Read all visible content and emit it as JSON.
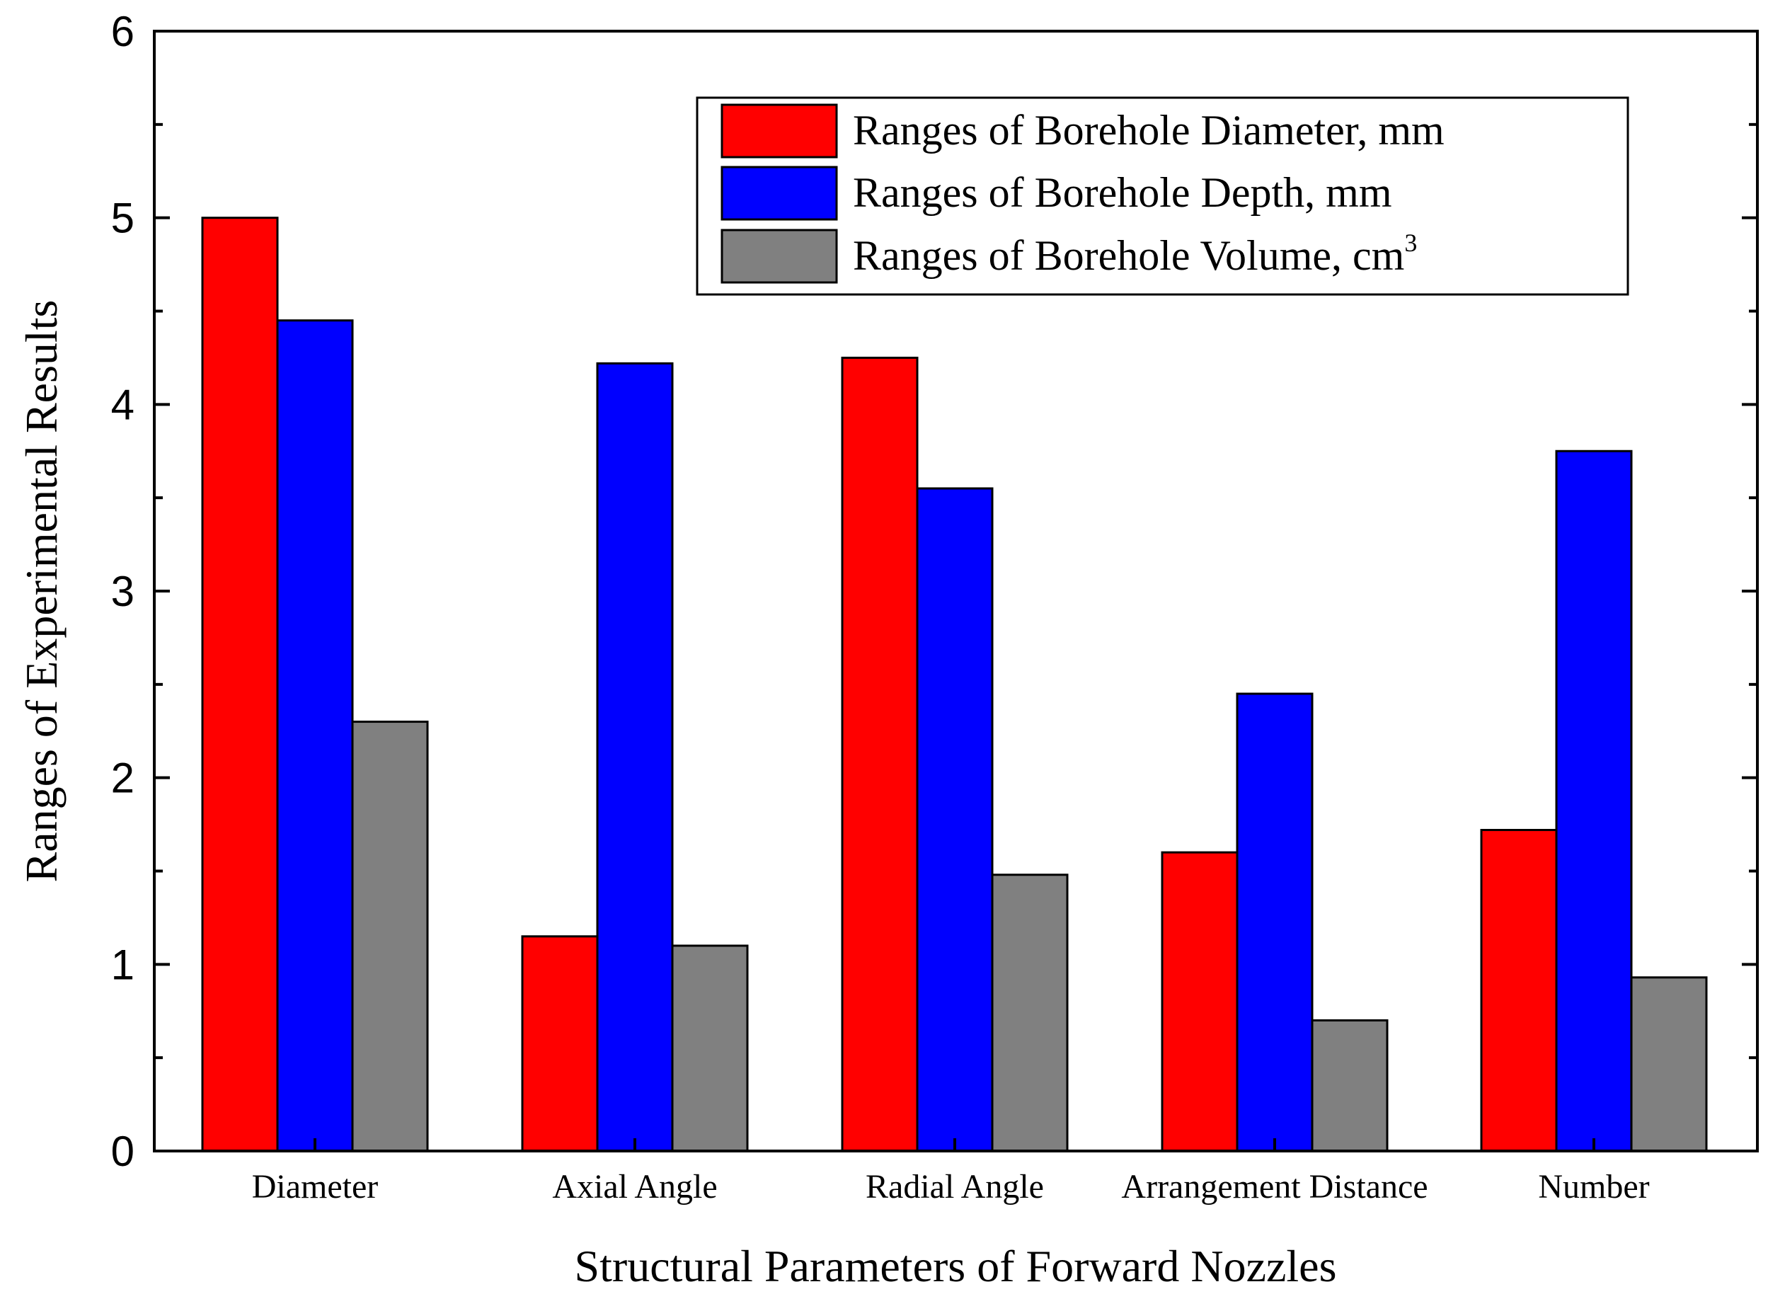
{
  "chart_data": {
    "type": "bar",
    "title": "",
    "xlabel": "Structural Parameters of Forward Nozzles",
    "ylabel": "Ranges of  Experimental Results",
    "ylim": [
      0,
      6
    ],
    "yticks": [
      "0",
      "1",
      "2",
      "3",
      "4",
      "5",
      "6"
    ],
    "categories": [
      "Diameter",
      "Axial Angle",
      "Radial Angle",
      "Arrangement Distance",
      "Number"
    ],
    "series": [
      {
        "name": "Ranges of  Borehole Diameter, mm",
        "color": "#ff0000",
        "values": [
          5.0,
          1.15,
          4.25,
          1.6,
          1.72
        ]
      },
      {
        "name": "Ranges of  Borehole Depth, mm",
        "color": "#0000ff",
        "values": [
          4.45,
          4.22,
          3.55,
          2.45,
          3.75
        ]
      },
      {
        "name": "Ranges of  Borehole Volume, cm",
        "superscript": "3",
        "color": "#808080",
        "values": [
          2.3,
          1.1,
          1.48,
          0.7,
          0.93
        ]
      }
    ],
    "legend_position": "top-right",
    "grid": false
  }
}
